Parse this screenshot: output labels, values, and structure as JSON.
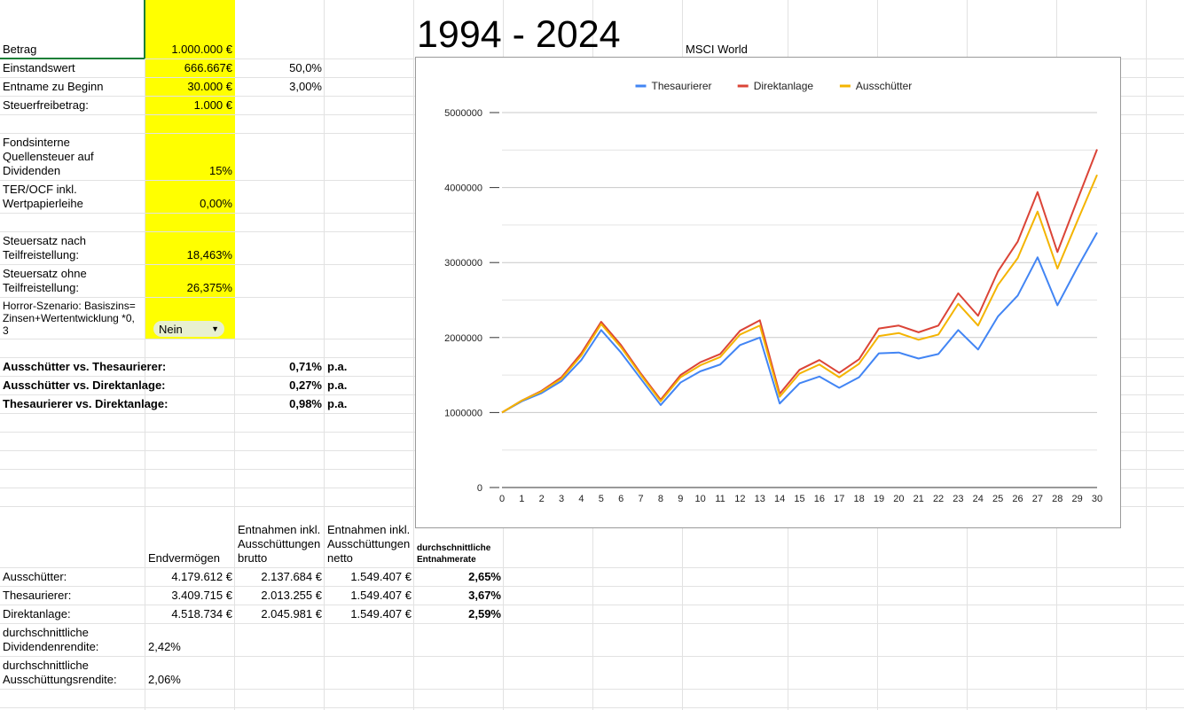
{
  "header": {
    "title": "1994 - 2024",
    "subtitle": "MSCI World"
  },
  "inputs": {
    "betrag": {
      "label": "Betrag",
      "value": "1.000.000 €"
    },
    "einstandswert": {
      "label": "Einstandswert",
      "value": "666.667€",
      "extra": "50,0%"
    },
    "entname": {
      "label": "Entname zu Beginn",
      "value": "30.000 €",
      "extra": "3,00%"
    },
    "steuerfrei": {
      "label": "Steuerfreibetrag:",
      "value": "1.000 €"
    },
    "quellensteuer": {
      "label": "Fondsinterne Quellensteuer auf Dividenden",
      "value": "15%"
    },
    "ter": {
      "label": "TER/OCF inkl. Wertpapierleihe",
      "value": "0,00%"
    },
    "steuersatz_nach": {
      "label": "Steuersatz nach Teilfreistellung:",
      "value": "18,463%"
    },
    "steuersatz_ohne": {
      "label": "Steuersatz ohne Teilfreistellung:",
      "value": "26,375%"
    },
    "horror": {
      "label": "Horror-Szenario: Basiszins=Zinsen+Wertentwicklung *0,3",
      "selected": "Nein"
    }
  },
  "comparisons": [
    {
      "label": "Ausschütter vs. Thesaurierer:",
      "value": "0,71%",
      "unit": "p.a."
    },
    {
      "label": "Ausschütter vs. Direktanlage:",
      "value": "0,27%",
      "unit": "p.a."
    },
    {
      "label": "Thesaurierer vs. Direktanlage:",
      "value": "0,98%",
      "unit": "p.a."
    }
  ],
  "results": {
    "headers": [
      "Endvermögen",
      "Entnahmen inkl. Ausschüttungen brutto",
      "Entnahmen inkl. Ausschüttungen netto",
      "durchschnittliche Entnahmerate"
    ],
    "rows": [
      {
        "label": "Ausschütter:",
        "endvermoegen": "4.179.612 €",
        "brutto": "2.137.684 €",
        "netto": "1.549.407 €",
        "rate": "2,65%"
      },
      {
        "label": "Thesaurierer:",
        "endvermoegen": "3.409.715 €",
        "brutto": "2.013.255 €",
        "netto": "1.549.407 €",
        "rate": "3,67%"
      },
      {
        "label": "Direktanlage:",
        "endvermoegen": "4.518.734 €",
        "brutto": "2.045.981 €",
        "netto": "1.549.407 €",
        "rate": "2,59%"
      }
    ],
    "dividendenrendite": {
      "label": "durchschnittliche Dividendenrendite:",
      "value": "2,42%"
    },
    "ausschuettungsrendite": {
      "label": "durchschnittliche Ausschüttungsrendite:",
      "value": "2,06%"
    }
  },
  "chart_data": {
    "type": "line",
    "x": [
      0,
      1,
      2,
      3,
      4,
      5,
      6,
      7,
      8,
      9,
      10,
      11,
      12,
      13,
      14,
      15,
      16,
      17,
      18,
      19,
      20,
      21,
      22,
      23,
      24,
      25,
      26,
      27,
      28,
      29,
      30
    ],
    "xlim": [
      0,
      30
    ],
    "ylim": [
      0,
      5000000
    ],
    "yticks": [
      0,
      1000000,
      2000000,
      3000000,
      4000000,
      5000000
    ],
    "ytick_labels": [
      "0",
      "1000000",
      "2000000",
      "3000000",
      "4000000",
      "5000000"
    ],
    "grid": true,
    "legend": "top-center",
    "series": [
      {
        "name": "Thesaurierer",
        "color": "#4285f4",
        "values": [
          1000000,
          1150000,
          1260000,
          1420000,
          1700000,
          2100000,
          1800000,
          1450000,
          1100000,
          1400000,
          1550000,
          1640000,
          1900000,
          2000000,
          1120000,
          1390000,
          1480000,
          1330000,
          1470000,
          1790000,
          1800000,
          1720000,
          1780000,
          2100000,
          1840000,
          2280000,
          2560000,
          3070000,
          2430000,
          2930000,
          3400000
        ]
      },
      {
        "name": "Direktanlage",
        "color": "#db4437",
        "values": [
          1000000,
          1160000,
          1290000,
          1470000,
          1790000,
          2210000,
          1900000,
          1520000,
          1170000,
          1500000,
          1670000,
          1780000,
          2090000,
          2230000,
          1250000,
          1570000,
          1700000,
          1530000,
          1710000,
          2120000,
          2160000,
          2070000,
          2160000,
          2590000,
          2290000,
          2880000,
          3280000,
          3940000,
          3140000,
          3830000,
          4510000
        ]
      },
      {
        "name": "Ausschütter",
        "color": "#f4b400",
        "values": [
          1000000,
          1160000,
          1280000,
          1450000,
          1760000,
          2180000,
          1870000,
          1500000,
          1150000,
          1470000,
          1630000,
          1740000,
          2040000,
          2160000,
          1210000,
          1520000,
          1640000,
          1470000,
          1650000,
          2020000,
          2060000,
          1970000,
          2040000,
          2450000,
          2160000,
          2700000,
          3060000,
          3680000,
          2920000,
          3550000,
          4170000
        ]
      }
    ]
  }
}
